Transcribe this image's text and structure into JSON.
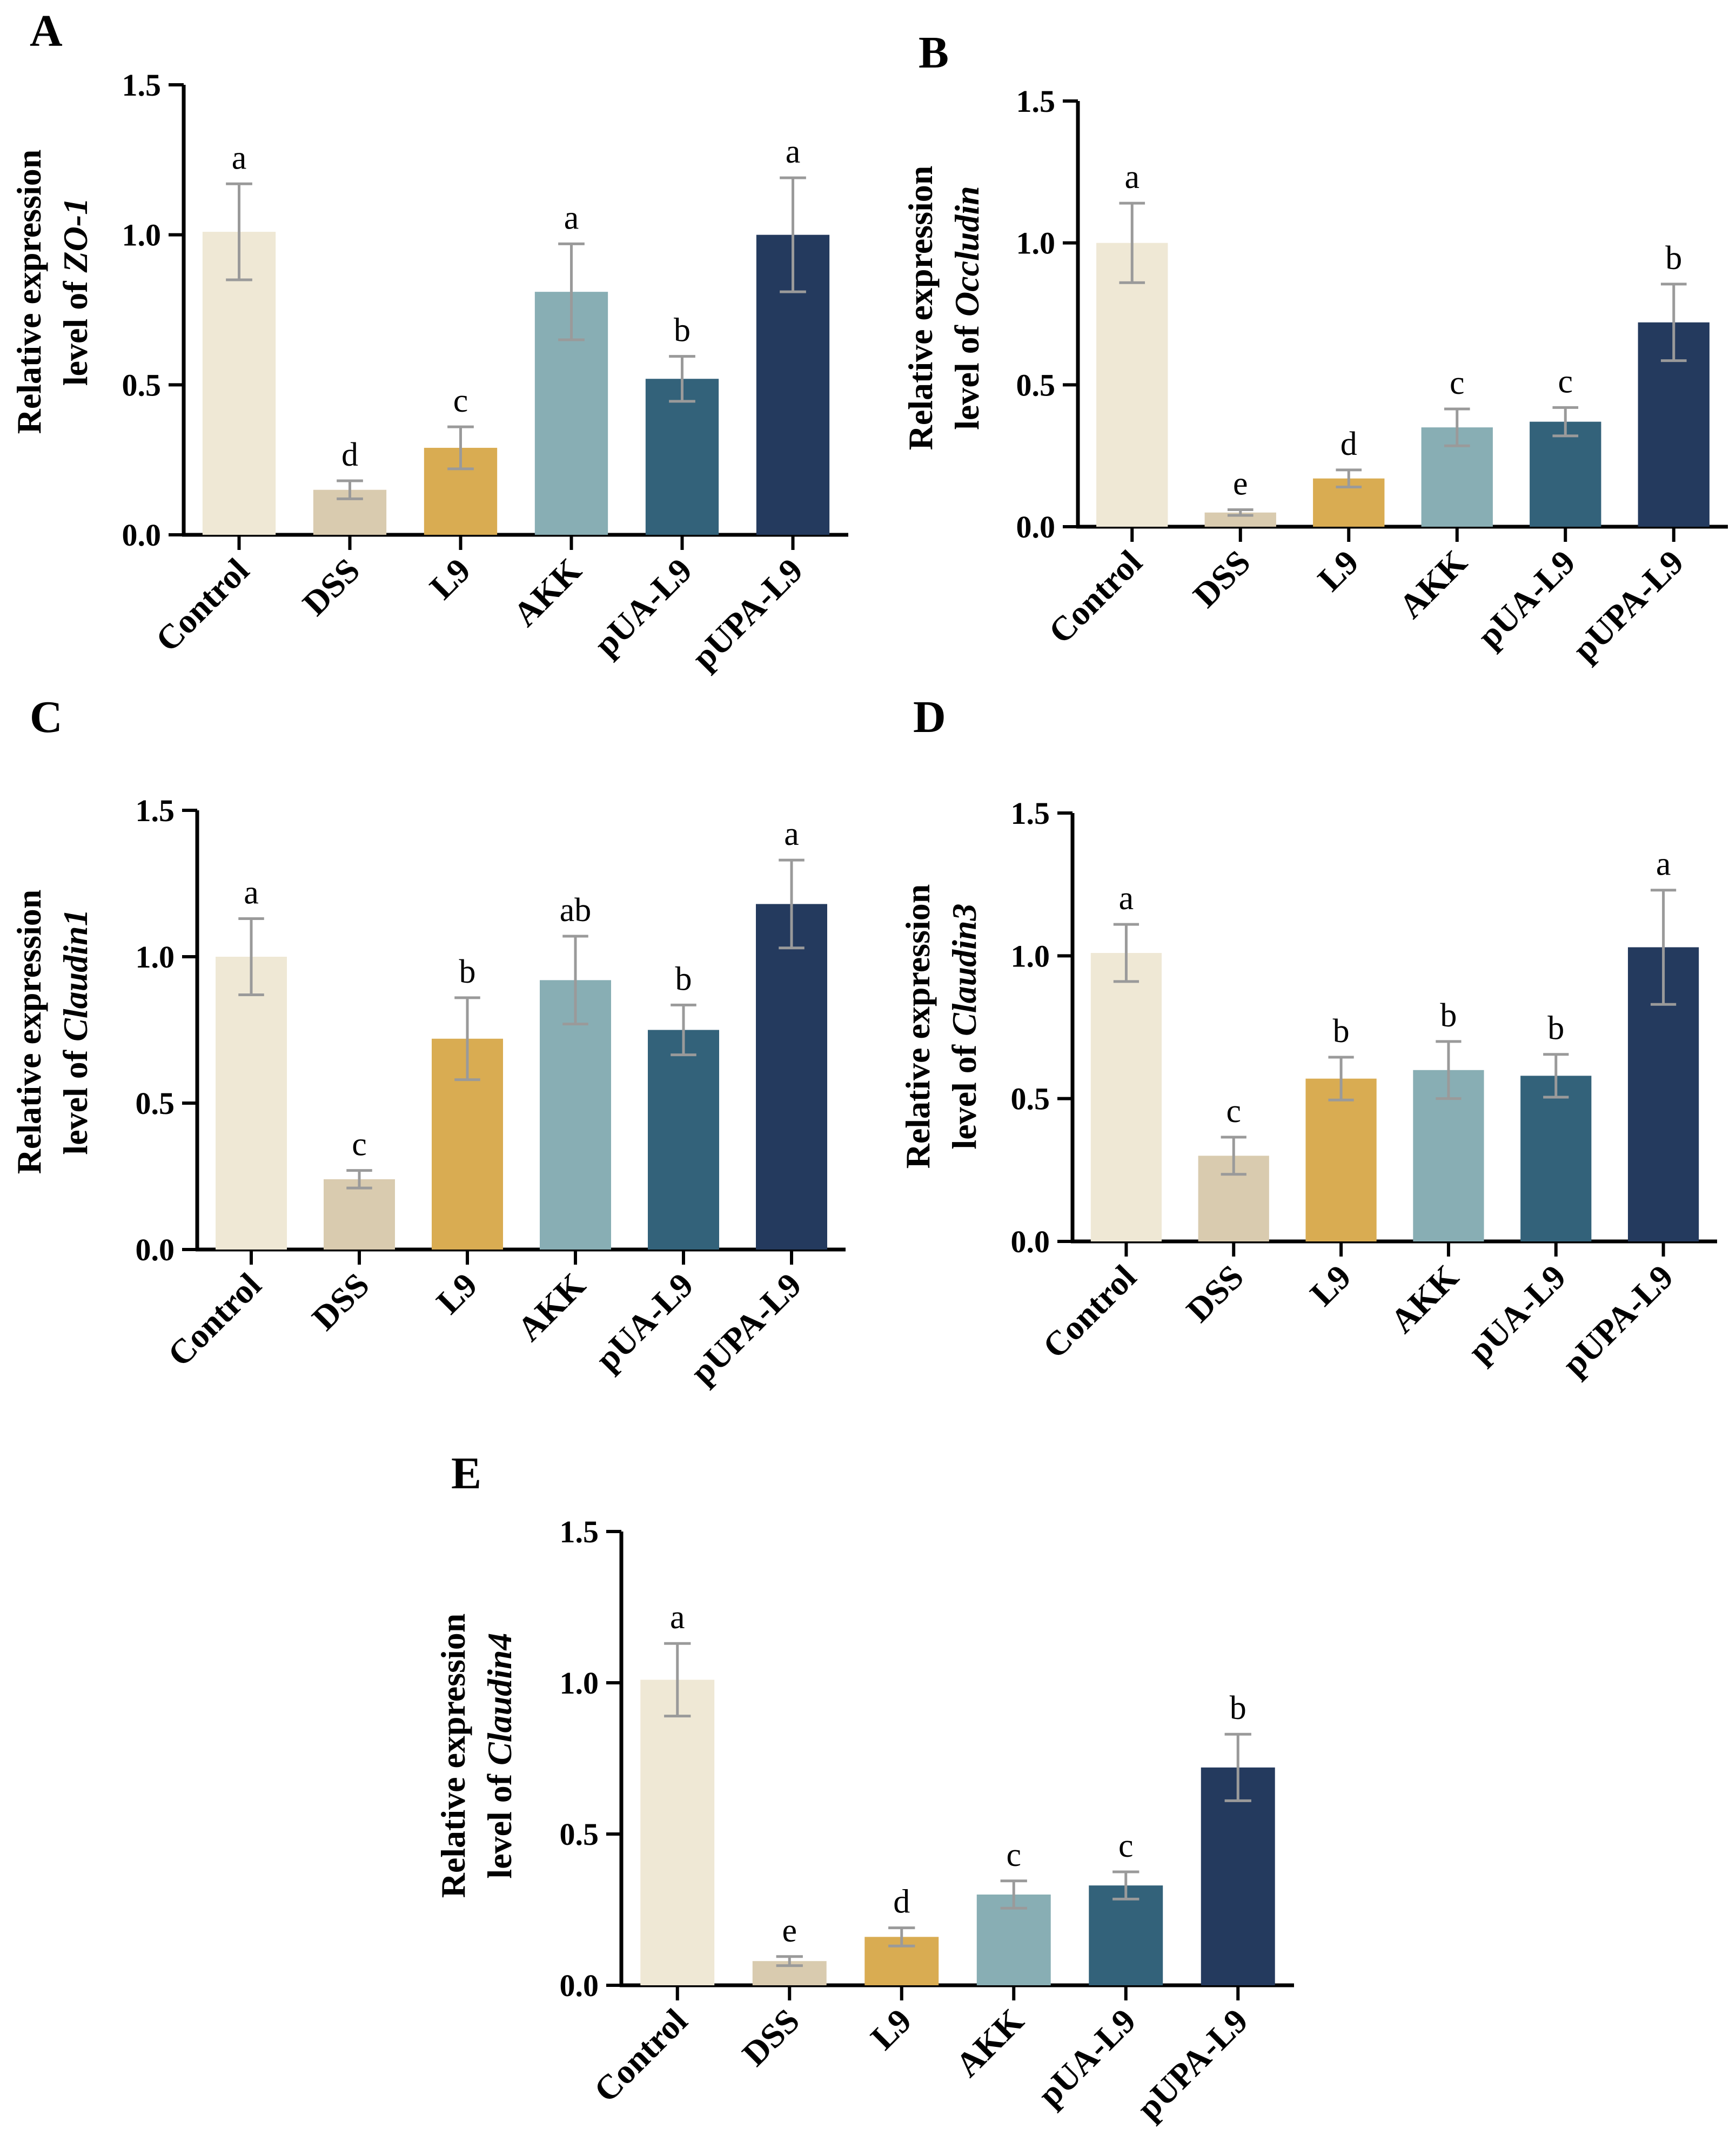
{
  "figure": {
    "categories": [
      "Control",
      "DSS",
      "L9",
      "AKK",
      "pUA-L9",
      "pUPA-L9"
    ],
    "group_colors": [
      "#efe8d5",
      "#d9cbaf",
      "#d9ac52",
      "#88aeb4",
      "#33627a",
      "#243a5e"
    ]
  },
  "chart_data": [
    {
      "type": "bar",
      "panel": "A",
      "ylabel_prefix": "Relative expression",
      "ylabel_line2": "level of",
      "gene": "ZO-1",
      "categories": [
        "Control",
        "DSS",
        "L9",
        "AKK",
        "pUA-L9",
        "pUPA-L9"
      ],
      "values": [
        1.01,
        0.15,
        0.29,
        0.81,
        0.52,
        1.0
      ],
      "errors": [
        0.16,
        0.03,
        0.07,
        0.16,
        0.075,
        0.19
      ],
      "significance": [
        "a",
        "d",
        "c",
        "a",
        "b",
        "a"
      ],
      "ylim": [
        0,
        1.5
      ],
      "yticks": [
        "0.0",
        "0.5",
        "1.0",
        "1.5"
      ]
    },
    {
      "type": "bar",
      "panel": "B",
      "ylabel_prefix": "Relative expression",
      "ylabel_line2": "level of",
      "gene": "Occludin",
      "categories": [
        "Control",
        "DSS",
        "L9",
        "AKK",
        "pUA-L9",
        "pUPA-L9"
      ],
      "values": [
        1.0,
        0.05,
        0.17,
        0.35,
        0.37,
        0.72
      ],
      "errors": [
        0.14,
        0.01,
        0.03,
        0.065,
        0.05,
        0.135
      ],
      "significance": [
        "a",
        "e",
        "d",
        "c",
        "c",
        "b"
      ],
      "ylim": [
        0,
        1.5
      ],
      "yticks": [
        "0.0",
        "0.5",
        "1.0",
        "1.5"
      ]
    },
    {
      "type": "bar",
      "panel": "C",
      "ylabel_prefix": "Relative expression",
      "ylabel_line2": "level of",
      "gene": "Claudin1",
      "categories": [
        "Control",
        "DSS",
        "L9",
        "AKK",
        "pUA-L9",
        "pUPA-L9"
      ],
      "values": [
        1.0,
        0.24,
        0.72,
        0.92,
        0.75,
        1.18
      ],
      "errors": [
        0.13,
        0.03,
        0.14,
        0.15,
        0.085,
        0.15
      ],
      "significance": [
        "a",
        "c",
        "b",
        "ab",
        "b",
        "a"
      ],
      "ylim": [
        0,
        1.5
      ],
      "yticks": [
        "0.0",
        "0.5",
        "1.0",
        "1.5"
      ]
    },
    {
      "type": "bar",
      "panel": "D",
      "ylabel_prefix": "Relative expression",
      "ylabel_line2": "level of",
      "gene": "Claudin3",
      "categories": [
        "Control",
        "DSS",
        "L9",
        "AKK",
        "pUA-L9",
        "pUPA-L9"
      ],
      "values": [
        1.01,
        0.3,
        0.57,
        0.6,
        0.58,
        1.03
      ],
      "errors": [
        0.1,
        0.065,
        0.075,
        0.1,
        0.075,
        0.2
      ],
      "significance": [
        "a",
        "c",
        "b",
        "b",
        "b",
        "a"
      ],
      "ylim": [
        0,
        1.5
      ],
      "yticks": [
        "0.0",
        "0.5",
        "1.0",
        "1.5"
      ]
    },
    {
      "type": "bar",
      "panel": "E",
      "ylabel_prefix": "Relative expression",
      "ylabel_line2": "level of",
      "gene": "Claudin4",
      "categories": [
        "Control",
        "DSS",
        "L9",
        "AKK",
        "pUA-L9",
        "pUPA-L9"
      ],
      "values": [
        1.01,
        0.08,
        0.16,
        0.3,
        0.33,
        0.72
      ],
      "errors": [
        0.12,
        0.015,
        0.03,
        0.045,
        0.045,
        0.11
      ],
      "significance": [
        "a",
        "e",
        "d",
        "c",
        "c",
        "b"
      ],
      "ylim": [
        0,
        1.5
      ],
      "yticks": [
        "0.0",
        "0.5",
        "1.0",
        "1.5"
      ]
    }
  ]
}
